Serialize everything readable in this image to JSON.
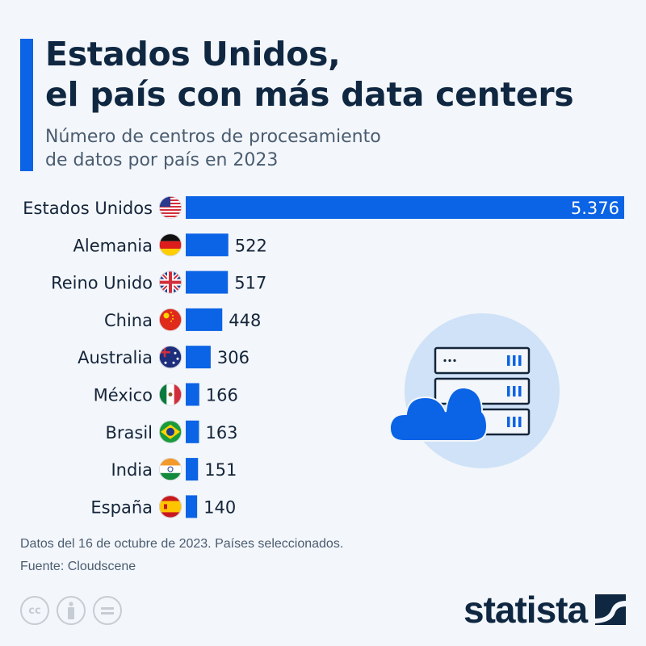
{
  "header": {
    "title_line1": "Estados Unidos,",
    "title_line2": "el país con más data centers",
    "subtitle_line1": "Número de centros de procesamiento",
    "subtitle_line2": "de datos por país en 2023"
  },
  "chart_data": {
    "type": "bar",
    "orientation": "horizontal",
    "categories": [
      "Estados Unidos",
      "Alemania",
      "Reino Unido",
      "China",
      "Australia",
      "México",
      "Brasil",
      "India",
      "España"
    ],
    "values": [
      5376,
      522,
      517,
      448,
      306,
      166,
      163,
      151,
      140
    ],
    "data_labels": [
      "5.376",
      "522",
      "517",
      "448",
      "306",
      "166",
      "163",
      "151",
      "140"
    ],
    "flags": [
      "us",
      "de",
      "gb",
      "cn",
      "au",
      "mx",
      "br",
      "in",
      "es"
    ],
    "bar_color": "#0b63e5",
    "grid": false,
    "title": "Estados Unidos, el país con más data centers"
  },
  "footer": {
    "note": "Datos del 16 de octubre de 2023. Países seleccionados.",
    "source": "Fuente: Cloudscene",
    "cc_icons": [
      "cc",
      "by",
      "nd"
    ],
    "cc_label": "cc",
    "logo": "statista"
  },
  "colors": {
    "background": "#f3f6fa",
    "accent": "#0b63e5",
    "title": "#0f2741",
    "illustration_circle": "#cfe2f7"
  }
}
